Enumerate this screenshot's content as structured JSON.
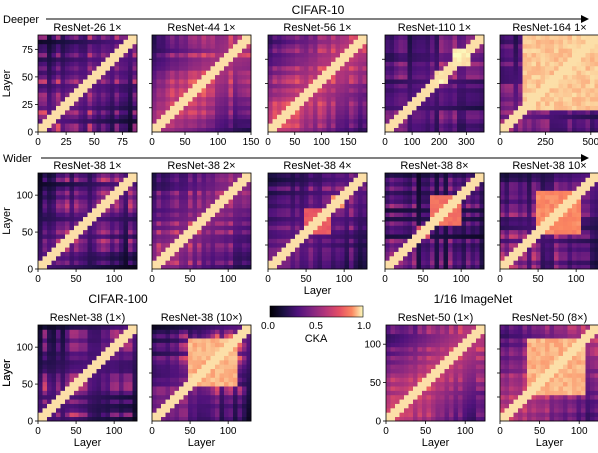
{
  "figure": {
    "sections": {
      "cifar10": "CIFAR-10",
      "cifar100": "CIFAR-100",
      "imagenet": "1/16 ImageNet"
    },
    "rows": {
      "deeper": "Deeper",
      "wider": "Wider"
    },
    "colorbar": {
      "label": "CKA",
      "ticks": [
        "0.0",
        "0.5",
        "1.0"
      ]
    },
    "axis_label_layer": "Layer",
    "panels": [
      {
        "title": "ResNet-26 1×",
        "xticks": [
          "0",
          "25",
          "50",
          "75"
        ],
        "yticks": [
          "0",
          "25",
          "50",
          "75"
        ],
        "ylabel": "Layer",
        "xlabel": ""
      },
      {
        "title": "ResNet-44 1×",
        "xticks": [
          "0",
          "50",
          "100",
          "150"
        ],
        "yticks": [],
        "ylabel": "",
        "xlabel": ""
      },
      {
        "title": "ResNet-56 1×",
        "xticks": [
          "0",
          "50",
          "100",
          "150"
        ],
        "yticks": [],
        "ylabel": "",
        "xlabel": ""
      },
      {
        "title": "ResNet-110 1×",
        "xticks": [
          "0",
          "100",
          "200",
          "300"
        ],
        "yticks": [],
        "ylabel": "",
        "xlabel": ""
      },
      {
        "title": "ResNet-164 1×",
        "xticks": [
          "0",
          "250",
          "500"
        ],
        "yticks": [],
        "ylabel": "",
        "xlabel": ""
      },
      {
        "title": "ResNet-38 1×",
        "xticks": [
          "0",
          "50",
          "100"
        ],
        "yticks": [
          "0",
          "50",
          "100"
        ],
        "ylabel": "Layer",
        "xlabel": ""
      },
      {
        "title": "ResNet-38 2×",
        "xticks": [
          "0",
          "50",
          "100"
        ],
        "yticks": [],
        "ylabel": "",
        "xlabel": ""
      },
      {
        "title": "ResNet-38 4×",
        "xticks": [
          "0",
          "50",
          "100"
        ],
        "yticks": [],
        "ylabel": "",
        "xlabel": "Layer"
      },
      {
        "title": "ResNet-38 8×",
        "xticks": [
          "0",
          "50",
          "100"
        ],
        "yticks": [],
        "ylabel": "",
        "xlabel": ""
      },
      {
        "title": "ResNet-38 10×",
        "xticks": [
          "0",
          "50",
          "100"
        ],
        "yticks": [],
        "ylabel": "",
        "xlabel": ""
      },
      {
        "title": "ResNet-38 (1×)",
        "xticks": [
          "0",
          "50",
          "100"
        ],
        "yticks": [
          "0",
          "50",
          "100"
        ],
        "ylabel": "Layer",
        "xlabel": "Layer"
      },
      {
        "title": "ResNet-38 (10×)",
        "xticks": [
          "0",
          "50",
          "100"
        ],
        "yticks": [],
        "ylabel": "",
        "xlabel": "Layer"
      },
      {
        "title": "ResNet-50 (1×)",
        "xticks": [
          "0",
          "50",
          "100"
        ],
        "yticks": [
          "0",
          "50",
          "100"
        ],
        "ylabel": "Layer",
        "xlabel": "Layer"
      },
      {
        "title": "ResNet-50 (8×)",
        "xticks": [
          "0",
          "50",
          "100"
        ],
        "yticks": [],
        "ylabel": "",
        "xlabel": "Layer"
      }
    ]
  },
  "chart_data": [
    {
      "type": "heatmap",
      "title": "ResNet-26 1×",
      "layers": 88,
      "xlim": [
        0,
        88
      ],
      "ylim": [
        0,
        88
      ],
      "block_structure": "none",
      "colorscale": "magma",
      "vmin": 0.0,
      "vmax": 1.0
    },
    {
      "type": "heatmap",
      "title": "ResNet-44 1×",
      "layers": 150,
      "xlim": [
        0,
        150
      ],
      "ylim": [
        0,
        150
      ],
      "block_structure": "none",
      "colorscale": "magma",
      "vmin": 0.0,
      "vmax": 1.0
    },
    {
      "type": "heatmap",
      "title": "ResNet-56 1×",
      "layers": 185,
      "xlim": [
        0,
        185
      ],
      "ylim": [
        0,
        185
      ],
      "block_structure": "weak",
      "colorscale": "magma",
      "vmin": 0.0,
      "vmax": 1.0
    },
    {
      "type": "heatmap",
      "title": "ResNet-110 1×",
      "layers": 365,
      "xlim": [
        0,
        365
      ],
      "ylim": [
        0,
        365
      ],
      "block_structure": "blocks at ~[190,230] and ~[250,315]",
      "colorscale": "magma",
      "vmin": 0.0,
      "vmax": 1.0
    },
    {
      "type": "heatmap",
      "title": "ResNet-164 1×",
      "layers": 545,
      "xlim": [
        0,
        545
      ],
      "ylim": [
        0,
        545
      ],
      "block_structure": "large block ~[120,540]",
      "colorscale": "magma",
      "vmin": 0.0,
      "vmax": 1.0
    },
    {
      "type": "heatmap",
      "title": "ResNet-38 1×",
      "layers": 130,
      "xlim": [
        0,
        130
      ],
      "ylim": [
        0,
        130
      ],
      "block_structure": "none",
      "colorscale": "magma",
      "vmin": 0.0,
      "vmax": 1.0
    },
    {
      "type": "heatmap",
      "title": "ResNet-38 2×",
      "layers": 130,
      "xlim": [
        0,
        130
      ],
      "ylim": [
        0,
        130
      ],
      "block_structure": "faint",
      "colorscale": "magma",
      "vmin": 0.0,
      "vmax": 1.0
    },
    {
      "type": "heatmap",
      "title": "ResNet-38 4×",
      "layers": 130,
      "xlim": [
        0,
        130
      ],
      "ylim": [
        0,
        130
      ],
      "block_structure": "blocks ~[50,80] and ~[80,100]",
      "colorscale": "magma",
      "vmin": 0.0,
      "vmax": 1.0
    },
    {
      "type": "heatmap",
      "title": "ResNet-38 8×",
      "layers": 130,
      "xlim": [
        0,
        130
      ],
      "ylim": [
        0,
        130
      ],
      "block_structure": "blocks ~[38,60] and ~[60,100]",
      "colorscale": "magma",
      "vmin": 0.0,
      "vmax": 1.0
    },
    {
      "type": "heatmap",
      "title": "ResNet-38 10×",
      "layers": 130,
      "xlim": [
        0,
        130
      ],
      "ylim": [
        0,
        130
      ],
      "block_structure": "large block ~[45,105]",
      "colorscale": "magma",
      "vmin": 0.0,
      "vmax": 1.0
    },
    {
      "type": "heatmap",
      "title": "ResNet-38 (1×)",
      "layers": 130,
      "xlim": [
        0,
        130
      ],
      "ylim": [
        0,
        130
      ],
      "block_structure": "none",
      "colorscale": "magma",
      "vmin": 0.0,
      "vmax": 1.0
    },
    {
      "type": "heatmap",
      "title": "ResNet-38 (10×)",
      "layers": 130,
      "xlim": [
        0,
        130
      ],
      "ylim": [
        0,
        130
      ],
      "block_structure": "large block ~[45,115]",
      "colorscale": "magma",
      "vmin": 0.0,
      "vmax": 1.0
    },
    {
      "type": "heatmap",
      "title": "ResNet-50 (1×)",
      "layers": 125,
      "xlim": [
        0,
        125
      ],
      "ylim": [
        0,
        125
      ],
      "block_structure": "none",
      "colorscale": "magma",
      "vmin": 0.0,
      "vmax": 1.0
    },
    {
      "type": "heatmap",
      "title": "ResNet-50 (8×)",
      "layers": 125,
      "xlim": [
        0,
        125
      ],
      "ylim": [
        0,
        125
      ],
      "block_structure": "large block ~[35,110]",
      "colorscale": "magma",
      "vmin": 0.0,
      "vmax": 1.0
    }
  ]
}
